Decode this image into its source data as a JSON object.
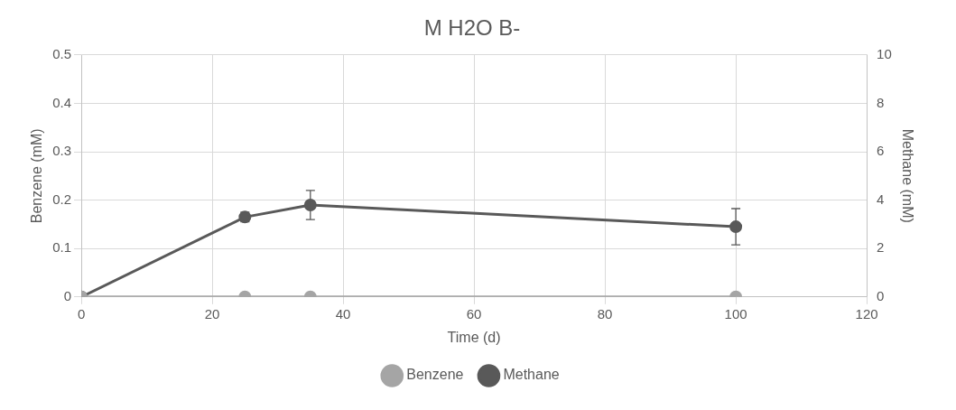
{
  "chart_data": {
    "type": "line",
    "title": "M H2O B-",
    "xlabel": "Time (d)",
    "ylabel": "Benzene (mM)",
    "y2label": "Methane (mM)",
    "x": [
      0,
      25,
      35,
      100
    ],
    "series": [
      {
        "name": "Benzene",
        "color": "#a5a5a5",
        "values": [
          0,
          0,
          0,
          0
        ]
      },
      {
        "name": "Methane",
        "color": "#595959",
        "values": [
          0,
          3.3,
          3.8,
          2.9
        ],
        "axis": "y2",
        "errors": [
          null,
          0.2,
          0.6,
          0.75
        ]
      }
    ],
    "xlim": [
      0,
      120
    ],
    "xticks": [
      0,
      20,
      40,
      60,
      80,
      100,
      120
    ],
    "ylim": [
      0,
      0.5
    ],
    "yticks": [
      0,
      0.1,
      0.2,
      0.3,
      0.4,
      0.5
    ],
    "y2lim": [
      0,
      10
    ],
    "y2ticks": [
      0,
      2,
      4,
      6,
      8,
      10
    ],
    "grid": true,
    "legend": "bottom",
    "marker": "circle",
    "line_style": "solid"
  }
}
